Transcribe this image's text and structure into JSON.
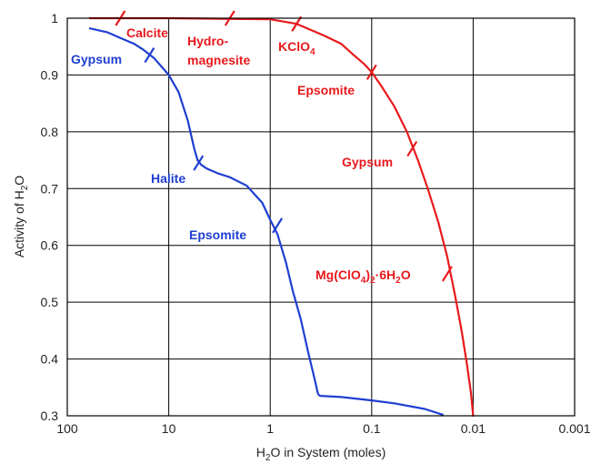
{
  "chart_data": {
    "type": "line",
    "xlabel": {
      "prefix": "H",
      "sub": "2",
      "suffix": "O in System (moles)"
    },
    "ylabel": {
      "prefix": "Activity of H",
      "sub": "2",
      "suffix": "O"
    },
    "x_scale": "log-reversed",
    "xlim": [
      100,
      0.001
    ],
    "ylim": [
      0.3,
      1.0
    ],
    "x_ticks": [
      100,
      10,
      1,
      0.1,
      0.01,
      0.001
    ],
    "x_tick_labels": [
      "100",
      "10",
      "1",
      "0.1",
      "0.01",
      "0.001"
    ],
    "y_ticks": [
      0.3,
      0.4,
      0.5,
      0.6,
      0.7,
      0.8,
      0.9,
      1.0
    ],
    "y_tick_labels": [
      "0.3",
      "0.4",
      "0.5",
      "0.6",
      "0.7",
      "0.8",
      "0.9",
      "1"
    ],
    "grid": true,
    "colors": {
      "blue": "#1f3fd1",
      "red": "#e8191c"
    },
    "series": [
      {
        "color": "#1f3fd1",
        "x": [
          60,
          40,
          30,
          22,
          18,
          14,
          10,
          8,
          6.5,
          5.6,
          5.2,
          4.8,
          4.2,
          3.3,
          2.5,
          1.7,
          1.2,
          1.0,
          0.85,
          0.7,
          0.6,
          0.5,
          0.42,
          0.36,
          0.34,
          0.33,
          0.32,
          0.2,
          0.1,
          0.06,
          0.03,
          0.02
        ],
        "y": [
          0.982,
          0.975,
          0.965,
          0.955,
          0.945,
          0.93,
          0.9,
          0.87,
          0.82,
          0.77,
          0.75,
          0.742,
          0.735,
          0.727,
          0.72,
          0.705,
          0.675,
          0.645,
          0.62,
          0.57,
          0.52,
          0.47,
          0.41,
          0.36,
          0.34,
          0.336,
          0.335,
          0.333,
          0.327,
          0.322,
          0.312,
          0.302
        ]
      },
      {
        "color": "#e8191c",
        "x": [
          60,
          10,
          1,
          0.55,
          0.3,
          0.2,
          0.15,
          0.12,
          0.1,
          0.08,
          0.06,
          0.045,
          0.035,
          0.028,
          0.022,
          0.018,
          0.015,
          0.013,
          0.0115,
          0.0105,
          0.01
        ],
        "y": [
          1.0,
          1.0,
          0.998,
          0.99,
          0.97,
          0.955,
          0.935,
          0.92,
          0.905,
          0.88,
          0.845,
          0.8,
          0.75,
          0.7,
          0.64,
          0.58,
          0.51,
          0.45,
          0.39,
          0.34,
          0.3
        ]
      }
    ],
    "markers": [
      {
        "color": "#1f3fd1",
        "x": 15.5,
        "y": 0.935
      },
      {
        "color": "#1f3fd1",
        "x": 5.1,
        "y": 0.745
      },
      {
        "color": "#1f3fd1",
        "x": 0.85,
        "y": 0.635
      },
      {
        "color": "#e8191c",
        "x": 30,
        "y": 1.0
      },
      {
        "color": "#e8191c",
        "x": 2.5,
        "y": 1.0
      },
      {
        "color": "#e8191c",
        "x": 0.55,
        "y": 0.99
      },
      {
        "color": "#e8191c",
        "x": 0.1,
        "y": 0.905
      },
      {
        "color": "#e8191c",
        "x": 0.04,
        "y": 0.77
      },
      {
        "color": "#e8191c",
        "x": 0.018,
        "y": 0.55
      }
    ],
    "annotations": [
      {
        "text": "Gypsum",
        "color": "#1f3fd1"
      },
      {
        "text": "Halite",
        "color": "#1f3fd1"
      },
      {
        "text": "Epsomite",
        "color": "#1f3fd1"
      },
      {
        "text": "Calcite",
        "color": "#e8191c"
      },
      {
        "text": "Hydro-",
        "color": "#e8191c"
      },
      {
        "text": "magnesite",
        "color": "#e8191c"
      },
      {
        "text": "KClO",
        "sub": "4",
        "color": "#e8191c"
      },
      {
        "text": "Epsomite",
        "color": "#e8191c"
      },
      {
        "text": "Gypsum",
        "color": "#e8191c"
      },
      {
        "text": "Mg(ClO",
        "sub": "4",
        "mid": ")",
        "sub2": "2",
        "suffix": "·6H",
        "sub3": "2",
        "suffix2": "O",
        "color": "#e8191c"
      }
    ]
  }
}
